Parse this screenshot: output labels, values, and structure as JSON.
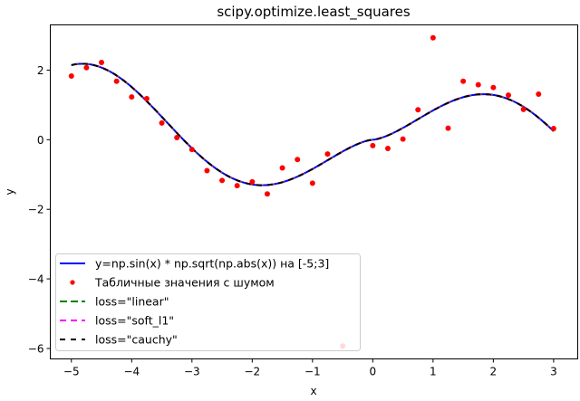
{
  "chart_data": {
    "type": "line",
    "title": "scipy.optimize.least_squares",
    "xlabel": "x",
    "ylabel": "y",
    "xlim": [
      -5.35,
      3.4
    ],
    "ylim": [
      -6.3,
      3.3
    ],
    "xticks": [
      -5,
      -4,
      -3,
      -2,
      -1,
      0,
      1,
      2,
      3
    ],
    "yticks": [
      -6,
      -4,
      -2,
      0,
      2
    ],
    "xtick_labels": [
      "−5",
      "−4",
      "−3",
      "−2",
      "−1",
      "0",
      "1",
      "2",
      "3"
    ],
    "ytick_labels": [
      "−6",
      "−4",
      "−2",
      "0",
      "2"
    ],
    "grid": false,
    "legend_position": "lower-left",
    "curve": {
      "name": "y=np.sin(x) * np.sqrt(np.abs(x)) на [-5;3]",
      "color": "#0000ff",
      "x_range": [
        -5,
        3
      ]
    },
    "fits": [
      {
        "name": "loss=\"linear\"",
        "color": "#008000",
        "dash": "8 4"
      },
      {
        "name": "loss=\"soft_l1\"",
        "color": "#ff00ff",
        "dash": "7 5"
      },
      {
        "name": "loss=\"cauchy\"",
        "color": "#000000",
        "dash": "6 6"
      }
    ],
    "scatter": {
      "name": "Табличные значения с шумом",
      "color": "#ff0000",
      "points": [
        [
          -5.0,
          1.83
        ],
        [
          -4.75,
          2.07
        ],
        [
          -4.5,
          2.22
        ],
        [
          -4.25,
          1.68
        ],
        [
          -4.0,
          1.23
        ],
        [
          -3.75,
          1.18
        ],
        [
          -3.5,
          0.48
        ],
        [
          -3.25,
          0.06
        ],
        [
          -3.0,
          -0.28
        ],
        [
          -2.75,
          -0.89
        ],
        [
          -2.5,
          -1.17
        ],
        [
          -2.25,
          -1.32
        ],
        [
          -2.0,
          -1.21
        ],
        [
          -1.75,
          -1.56
        ],
        [
          -1.5,
          -0.81
        ],
        [
          -1.25,
          -0.57
        ],
        [
          -1.0,
          -1.25
        ],
        [
          -0.75,
          -0.41
        ],
        [
          -0.5,
          -5.93
        ],
        [
          0.0,
          -0.17
        ],
        [
          0.25,
          -0.25
        ],
        [
          0.5,
          0.02
        ],
        [
          0.75,
          0.86
        ],
        [
          1.0,
          2.93
        ],
        [
          1.25,
          0.33
        ],
        [
          1.5,
          1.68
        ],
        [
          1.75,
          1.58
        ],
        [
          2.0,
          1.5
        ],
        [
          2.25,
          1.28
        ],
        [
          2.5,
          0.87
        ],
        [
          2.75,
          1.31
        ],
        [
          3.0,
          0.32
        ]
      ]
    }
  }
}
